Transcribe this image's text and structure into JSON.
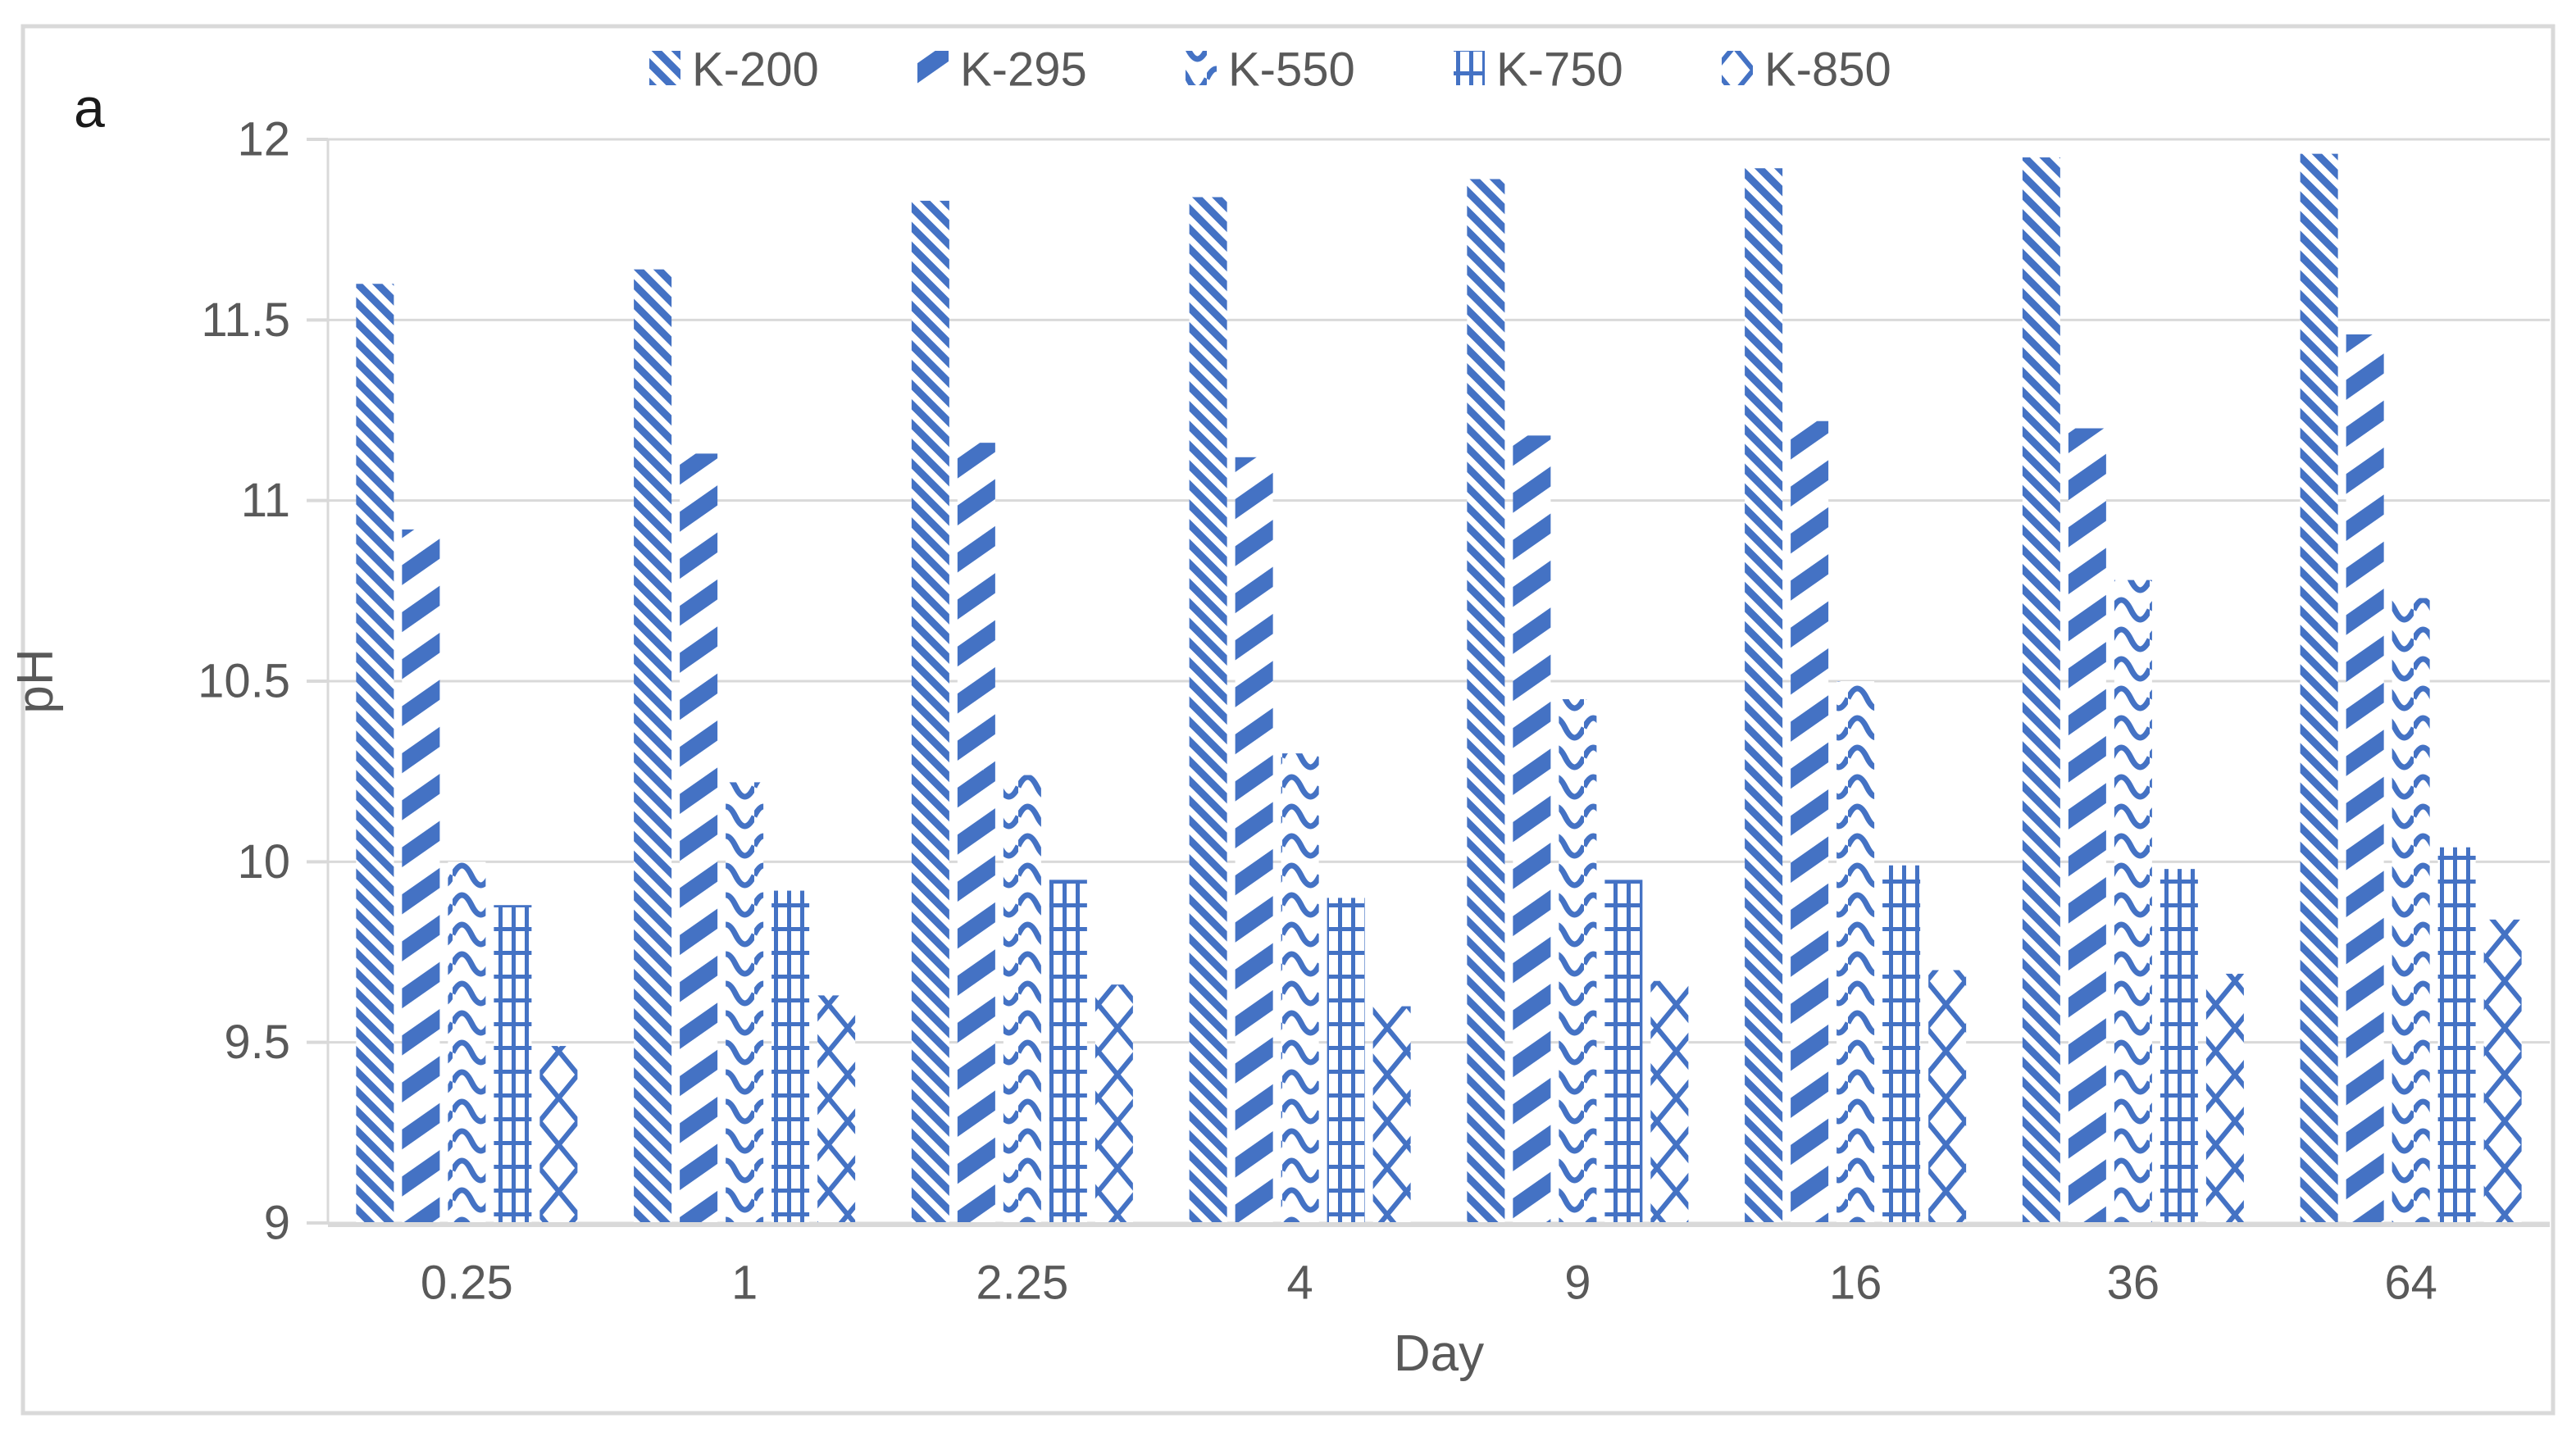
{
  "chart_data": {
    "type": "bar",
    "title": "",
    "panel_label": "a",
    "xlabel": "Day",
    "ylabel": "pH",
    "categories": [
      "0.25",
      "1",
      "2.25",
      "4",
      "9",
      "16",
      "36",
      "64"
    ],
    "ylim": [
      9,
      12
    ],
    "yticks": [
      9,
      9.5,
      10,
      10.5,
      11,
      11.5,
      12
    ],
    "grid": true,
    "legend_position": "top-center",
    "series": [
      {
        "name": "K-200",
        "pattern": "thin-diagonal-down",
        "values": [
          11.6,
          11.64,
          11.83,
          11.84,
          11.89,
          11.92,
          11.95,
          11.96
        ]
      },
      {
        "name": "K-295",
        "pattern": "thick-diagonal-up",
        "values": [
          10.92,
          11.13,
          11.16,
          11.12,
          11.18,
          11.22,
          11.2,
          11.46
        ]
      },
      {
        "name": "K-550",
        "pattern": "horizontal-wave",
        "values": [
          10.0,
          10.22,
          10.24,
          10.3,
          10.45,
          10.5,
          10.78,
          10.73
        ]
      },
      {
        "name": "K-750",
        "pattern": "grid-lattice",
        "values": [
          9.88,
          9.92,
          9.95,
          9.9,
          9.95,
          9.99,
          9.98,
          10.04
        ]
      },
      {
        "name": "K-850",
        "pattern": "diamond-lattice",
        "values": [
          9.49,
          9.63,
          9.66,
          9.6,
          9.67,
          9.7,
          9.69,
          9.84
        ]
      }
    ],
    "colors": {
      "bar": "#4472C4",
      "grid": "#D9D9D9",
      "axis_line": "#D9D9D9",
      "axis_text": "#595959",
      "panel_text": "#1A1A1A",
      "border": "#D9D9D9",
      "background": "#FFFFFF"
    }
  }
}
